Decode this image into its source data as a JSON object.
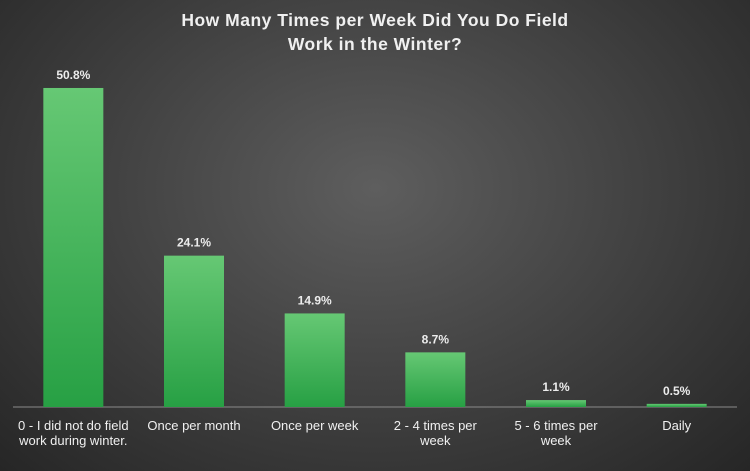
{
  "chart_data": {
    "type": "bar",
    "title": "How Many Times per Week Did You Do Field Work in the Winter?",
    "categories": [
      "0 - I did not do field work during winter.",
      "Once per month",
      "Once per week",
      "2 - 4 times per week",
      "5 - 6 times per week",
      "Daily"
    ],
    "values": [
      50.8,
      24.1,
      14.9,
      8.7,
      1.1,
      0.5
    ],
    "value_labels": [
      "50.8%",
      "24.1%",
      "14.9%",
      "8.7%",
      "1.1%",
      "0.5%"
    ],
    "color": "#3db552"
  }
}
